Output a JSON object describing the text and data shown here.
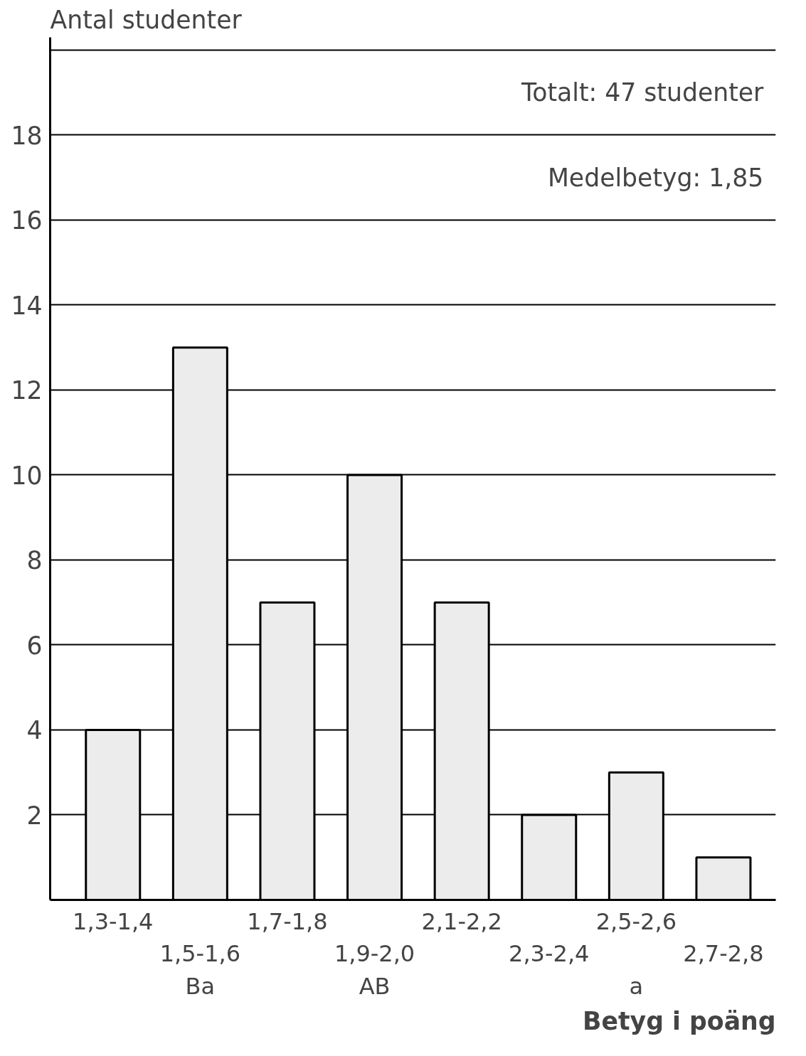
{
  "chart_data": {
    "type": "bar",
    "ylabel": "Antal studenter",
    "xlabel": "Betyg i poäng",
    "categories": [
      "1,3-1,4",
      "1,5-1,6\nBa",
      "1,7-1,8",
      "1,9-2,0\nAB",
      "2,1-2,2",
      "2,3-2,4",
      "2,5-2,6\na",
      "2,7-2,8"
    ],
    "values": [
      4,
      13,
      7,
      10,
      7,
      2,
      3,
      1
    ],
    "color": "#ececec",
    "ylim": [
      0,
      20.3
    ],
    "yticks": [
      2,
      4,
      6,
      8,
      10,
      12,
      14,
      16,
      18,
      {
        "value": 20,
        "label": null
      }
    ],
    "grid": "y",
    "annotations": [
      "Totalt:  47 studenter",
      "Medelbetyg:  1,85"
    ]
  }
}
